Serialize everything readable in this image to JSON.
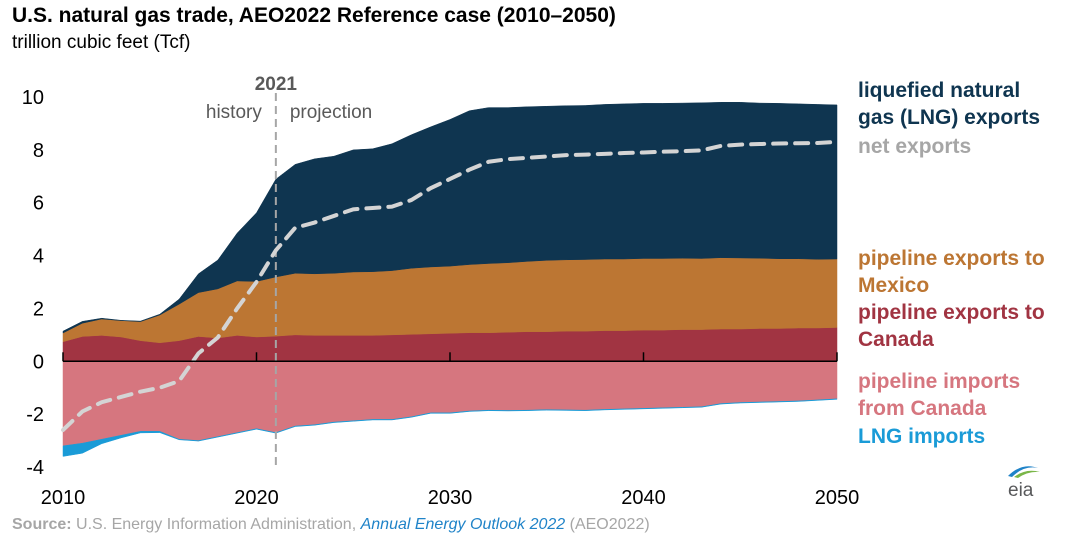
{
  "title": "U.S. natural gas trade, AEO2022 Reference case (2010–2050)",
  "subtitle": "trillion cubic feet (Tcf)",
  "source": {
    "label": "Source:",
    "text": " U.S. Energy Information Administration, ",
    "publication": "Annual Energy Outlook 2022",
    "suffix": " (AEO2022)"
  },
  "logo_text": "eia",
  "colors": {
    "lng_exports": "#0f3550",
    "pipeline_mexico": "#bc7633",
    "pipeline_canada_exports": "#a13442",
    "pipeline_imports_canada": "#d6767f",
    "lng_imports": "#1a9bd7",
    "net_exports": "#d4d4d4",
    "net_exports_label": "#a6a6a6",
    "logo_blue": "#1f83c8",
    "logo_green": "#7ab648",
    "logo_text": "#58595b"
  },
  "chart_data": {
    "type": "area",
    "x": [
      2010,
      2011,
      2012,
      2013,
      2014,
      2015,
      2016,
      2017,
      2018,
      2019,
      2020,
      2021,
      2022,
      2023,
      2024,
      2025,
      2026,
      2027,
      2028,
      2029,
      2030,
      2031,
      2032,
      2033,
      2034,
      2035,
      2036,
      2037,
      2038,
      2039,
      2040,
      2041,
      2042,
      2043,
      2044,
      2045,
      2046,
      2047,
      2048,
      2049,
      2050
    ],
    "xticks": [
      2010,
      2020,
      2030,
      2040,
      2050
    ],
    "ylim": [
      -4,
      10
    ],
    "yticks": [
      -4,
      -2,
      0,
      2,
      4,
      6,
      8,
      10
    ],
    "history_end": 2021,
    "marker_year_label": "2021",
    "history_label": "history",
    "projection_label": "projection",
    "series": [
      {
        "name": "pipeline exports to Canada",
        "key": "pipeline_canada_exports",
        "values": [
          0.74,
          0.94,
          0.98,
          0.92,
          0.78,
          0.7,
          0.78,
          0.94,
          0.88,
          0.98,
          0.92,
          0.95,
          1.0,
          0.98,
          0.98,
          0.98,
          0.98,
          1.0,
          1.02,
          1.04,
          1.06,
          1.08,
          1.08,
          1.1,
          1.12,
          1.12,
          1.14,
          1.14,
          1.16,
          1.16,
          1.18,
          1.18,
          1.2,
          1.2,
          1.22,
          1.22,
          1.24,
          1.24,
          1.26,
          1.26,
          1.28
        ]
      },
      {
        "name": "pipeline exports to Mexico",
        "key": "pipeline_mexico",
        "values": [
          0.33,
          0.5,
          0.62,
          0.62,
          0.72,
          1.05,
          1.38,
          1.66,
          1.86,
          2.06,
          2.1,
          2.24,
          2.33,
          2.33,
          2.35,
          2.4,
          2.41,
          2.43,
          2.5,
          2.53,
          2.54,
          2.58,
          2.62,
          2.63,
          2.66,
          2.7,
          2.7,
          2.71,
          2.71,
          2.71,
          2.71,
          2.71,
          2.7,
          2.69,
          2.7,
          2.69,
          2.66,
          2.64,
          2.62,
          2.6,
          2.59
        ]
      },
      {
        "name": "liquefied natural gas (LNG) exports",
        "key": "lng_exports",
        "values": [
          0.07,
          0.07,
          0.03,
          0.01,
          0.02,
          0.03,
          0.19,
          0.71,
          1.09,
          1.81,
          2.6,
          3.7,
          4.12,
          4.35,
          4.43,
          4.62,
          4.65,
          4.8,
          5.05,
          5.3,
          5.55,
          5.82,
          5.9,
          5.87,
          5.85,
          5.83,
          5.83,
          5.83,
          5.85,
          5.87,
          5.87,
          5.87,
          5.87,
          5.89,
          5.88,
          5.89,
          5.87,
          5.88,
          5.86,
          5.86,
          5.83
        ]
      },
      {
        "name": "pipeline imports from Canada",
        "key": "pipeline_imports_canada",
        "values": [
          -3.2,
          -3.1,
          -2.95,
          -2.8,
          -2.65,
          -2.65,
          -2.95,
          -3.0,
          -2.85,
          -2.7,
          -2.55,
          -2.7,
          -2.45,
          -2.4,
          -2.3,
          -2.25,
          -2.2,
          -2.2,
          -2.1,
          -1.95,
          -1.95,
          -1.88,
          -1.85,
          -1.86,
          -1.85,
          -1.83,
          -1.84,
          -1.85,
          -1.82,
          -1.8,
          -1.78,
          -1.76,
          -1.74,
          -1.72,
          -1.6,
          -1.56,
          -1.54,
          -1.52,
          -1.5,
          -1.46,
          -1.42
        ]
      },
      {
        "name": "LNG imports",
        "key": "lng_imports",
        "values": [
          -0.4,
          -0.38,
          -0.17,
          -0.1,
          -0.06,
          -0.05,
          -0.02,
          -0.02,
          -0.02,
          -0.02,
          -0.02,
          -0.02,
          -0.02,
          -0.02,
          -0.02,
          -0.02,
          -0.02,
          -0.02,
          -0.02,
          -0.02,
          -0.02,
          -0.02,
          -0.02,
          -0.02,
          -0.02,
          -0.02,
          -0.02,
          -0.02,
          -0.02,
          -0.02,
          -0.02,
          -0.02,
          -0.02,
          -0.02,
          -0.02,
          -0.02,
          -0.02,
          -0.02,
          -0.02,
          -0.02,
          -0.02
        ]
      },
      {
        "name": "net exports",
        "key": "net_exports",
        "line": true,
        "values": [
          -2.6,
          -1.9,
          -1.55,
          -1.35,
          -1.15,
          -1.0,
          -0.75,
          0.3,
          0.9,
          2.0,
          3.0,
          4.2,
          5.05,
          5.25,
          5.5,
          5.75,
          5.8,
          5.85,
          6.1,
          6.55,
          6.9,
          7.25,
          7.55,
          7.65,
          7.7,
          7.75,
          7.8,
          7.82,
          7.85,
          7.88,
          7.9,
          7.93,
          7.95,
          7.98,
          8.15,
          8.2,
          8.22,
          8.24,
          8.25,
          8.26,
          8.3
        ]
      }
    ],
    "legend": [
      {
        "lines": [
          "liquefied natural",
          "gas (LNG) exports"
        ],
        "color_key": "lng_exports"
      },
      {
        "lines": [
          "net exports"
        ],
        "color_key": "net_exports_label"
      },
      {
        "lines": [
          "pipeline exports to",
          "Mexico"
        ],
        "color_key": "pipeline_mexico"
      },
      {
        "lines": [
          "pipeline exports to",
          "Canada"
        ],
        "color_key": "pipeline_canada_exports"
      },
      {
        "lines": [
          "pipeline imports",
          "from Canada"
        ],
        "color_key": "pipeline_imports_canada"
      },
      {
        "lines": [
          "LNG imports"
        ],
        "color_key": "lng_imports"
      }
    ]
  }
}
